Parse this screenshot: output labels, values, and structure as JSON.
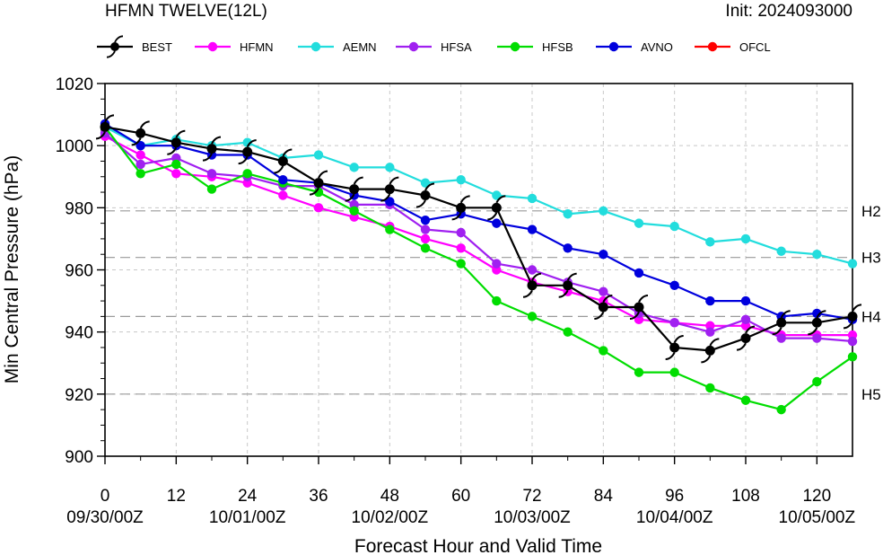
{
  "header": {
    "title": "HFMN TWELVE(12L)",
    "init": "Init: 2024093000"
  },
  "chart_data": {
    "type": "line",
    "xlabel": "Forecast Hour and Valid Time",
    "ylabel": "Min Central Pressure (hPa)",
    "xlim": [
      0,
      126
    ],
    "ylim": [
      900,
      1020
    ],
    "xticks": [
      0,
      12,
      24,
      36,
      48,
      60,
      72,
      84,
      96,
      108,
      120
    ],
    "xtick_labels": [
      "0",
      "12",
      "24",
      "36",
      "48",
      "60",
      "72",
      "84",
      "96",
      "108",
      "120"
    ],
    "date_labels": [
      {
        "hour": 0,
        "label": "09/30/00Z"
      },
      {
        "hour": 24,
        "label": "10/01/00Z"
      },
      {
        "hour": 48,
        "label": "10/02/00Z"
      },
      {
        "hour": 72,
        "label": "10/03/00Z"
      },
      {
        "hour": 96,
        "label": "10/04/00Z"
      },
      {
        "hour": 120,
        "label": "10/05/00Z"
      }
    ],
    "yticks": [
      900,
      920,
      940,
      960,
      980,
      1000,
      1020
    ],
    "ytick_labels": [
      "900",
      "920",
      "940",
      "960",
      "980",
      "1000",
      "1020"
    ],
    "reference_lines": [
      {
        "value": 979,
        "label": "H2"
      },
      {
        "value": 964,
        "label": "H3"
      },
      {
        "value": 945,
        "label": "H4"
      },
      {
        "value": 920,
        "label": "H5"
      }
    ],
    "grid": true,
    "legend_position": "top",
    "series": [
      {
        "name": "BEST",
        "color": "#000000",
        "marker": "hurricane",
        "x": [
          0,
          6,
          12,
          18,
          24,
          30,
          36,
          42,
          48,
          54,
          60,
          66,
          72,
          78,
          84,
          90,
          96,
          102,
          108,
          114,
          120,
          126
        ],
        "y": [
          1006,
          1004,
          1001,
          999,
          998,
          995,
          988,
          986,
          986,
          984,
          980,
          980,
          955,
          955,
          948,
          948,
          935,
          934,
          938,
          943,
          943,
          945
        ]
      },
      {
        "name": "HFMN",
        "color": "#ff00ff",
        "marker": "dot",
        "x": [
          0,
          6,
          12,
          18,
          24,
          30,
          36,
          42,
          48,
          54,
          60,
          66,
          72,
          78,
          84,
          90,
          96,
          102,
          108,
          114,
          120,
          126
        ],
        "y": [
          1003,
          997,
          991,
          990,
          988,
          984,
          980,
          977,
          974,
          970,
          967,
          960,
          956,
          953,
          950,
          944,
          943,
          942,
          942,
          939,
          939,
          939
        ]
      },
      {
        "name": "AEMN",
        "color": "#22dddd",
        "marker": "dot",
        "x": [
          0,
          6,
          12,
          18,
          24,
          30,
          36,
          42,
          48,
          54,
          60,
          66,
          72,
          78,
          84,
          90,
          96,
          102,
          108,
          114,
          120,
          126
        ],
        "y": [
          1006,
          1000,
          1002,
          1000,
          1001,
          996,
          997,
          993,
          993,
          988,
          989,
          984,
          983,
          978,
          979,
          975,
          974,
          969,
          970,
          966,
          965,
          962
        ]
      },
      {
        "name": "HFSA",
        "color": "#a020f0",
        "marker": "dot",
        "x": [
          0,
          6,
          12,
          18,
          24,
          30,
          36,
          42,
          48,
          54,
          60,
          66,
          72,
          78,
          84,
          90,
          96,
          102,
          108,
          114,
          120,
          126
        ],
        "y": [
          1004,
          994,
          996,
          991,
          990,
          987,
          987,
          981,
          981,
          973,
          972,
          962,
          960,
          956,
          953,
          946,
          943,
          940,
          944,
          938,
          938,
          937
        ]
      },
      {
        "name": "HFSB",
        "color": "#00dd00",
        "marker": "dot",
        "x": [
          0,
          6,
          12,
          18,
          24,
          30,
          36,
          42,
          48,
          54,
          60,
          66,
          72,
          78,
          84,
          90,
          96,
          102,
          108,
          114,
          120,
          126
        ],
        "y": [
          1006,
          991,
          994,
          986,
          991,
          988,
          985,
          979,
          973,
          967,
          962,
          950,
          945,
          940,
          934,
          927,
          927,
          922,
          918,
          915,
          924,
          932
        ]
      },
      {
        "name": "AVNO",
        "color": "#0000dd",
        "marker": "dot",
        "x": [
          0,
          6,
          12,
          18,
          24,
          30,
          36,
          42,
          48,
          54,
          60,
          66,
          72,
          78,
          84,
          90,
          96,
          102,
          108,
          114,
          120,
          126
        ],
        "y": [
          1007,
          1000,
          1000,
          997,
          997,
          989,
          988,
          984,
          982,
          976,
          978,
          975,
          973,
          967,
          965,
          959,
          955,
          950,
          950,
          945,
          946,
          944
        ]
      },
      {
        "name": "OFCL",
        "color": "#ff0000",
        "marker": "dot",
        "x": [],
        "y": []
      }
    ]
  }
}
